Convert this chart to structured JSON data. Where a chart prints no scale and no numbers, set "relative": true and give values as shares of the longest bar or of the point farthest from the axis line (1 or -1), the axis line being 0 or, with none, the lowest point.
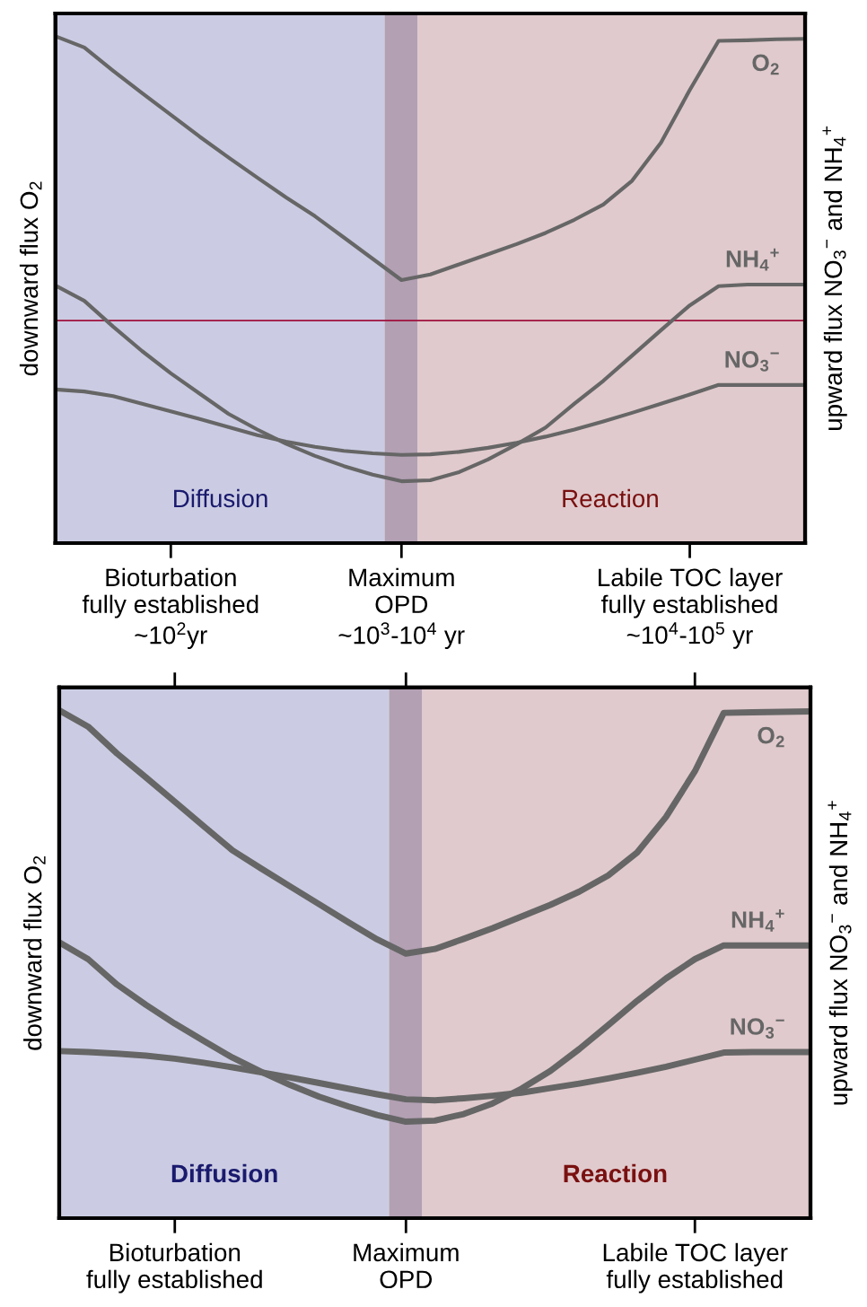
{
  "chart_data": [
    {
      "type": "line",
      "relative": true,
      "ylabel": "downward flux O$_{2}$",
      "y2label": "upward flux NO$_{3}$$^{−}$ and NH$_{4}$$^{+}$",
      "categories": [
        null,
        null,
        null,
        null,
        "Bioturbation\nfully established\n~10$^{2}$yr",
        null,
        null,
        null,
        null,
        null,
        null,
        null,
        "Maximum\nOPD\n~10$^{3}$-10$^{4}$ yr",
        null,
        null,
        null,
        null,
        null,
        null,
        null,
        null,
        null,
        "Labile TOC layer\nfully established\n~10$^{4}$-10$^{5}$ yr",
        null,
        null,
        null,
        null
      ],
      "annotations": [
        "Diffusion",
        "Reaction"
      ],
      "ref_lines": [
        {
          "axis": "y",
          "value": 0.439,
          "color": "#a0103c"
        }
      ],
      "series": [
        {
          "name": "O$_{2}$",
          "color": "#666666",
          "values": [
            1.0,
            0.978,
            0.932,
            0.888,
            0.845,
            0.802,
            0.761,
            0.721,
            0.682,
            0.645,
            0.603,
            0.561,
            0.519,
            0.53,
            0.55,
            0.57,
            0.59,
            0.612,
            0.638,
            0.668,
            0.715,
            0.79,
            0.894,
            0.991,
            0.992,
            0.994,
            0.995
          ]
        },
        {
          "name": "NH$_{4}$$^{+}$",
          "color": "#666666",
          "values": [
            0.508,
            0.478,
            0.427,
            0.379,
            0.335,
            0.295,
            0.255,
            0.224,
            0.196,
            0.172,
            0.152,
            0.135,
            0.122,
            0.124,
            0.14,
            0.165,
            0.195,
            0.228,
            0.275,
            0.32,
            0.37,
            0.42,
            0.469,
            0.507,
            0.51,
            0.51,
            0.51
          ]
        },
        {
          "name": "NO$_{3}$$^{−}$",
          "color": "#666666",
          "values": [
            0.303,
            0.299,
            0.29,
            0.275,
            0.26,
            0.245,
            0.229,
            0.213,
            0.2,
            0.19,
            0.182,
            0.177,
            0.174,
            0.175,
            0.18,
            0.188,
            0.198,
            0.21,
            0.224,
            0.24,
            0.257,
            0.275,
            0.293,
            0.312,
            0.312,
            0.312,
            0.312
          ]
        }
      ]
    },
    {
      "type": "line",
      "relative": true,
      "ylabel": "downward flux O$_{2}$",
      "y2label": "upward flux NO$_{3}$$^{−}$ and NH$_{4}$$^{+}$",
      "categories": [
        null,
        null,
        null,
        null,
        "Bioturbation\nfully established",
        null,
        null,
        null,
        null,
        null,
        null,
        null,
        "Maximum\nOPD",
        null,
        null,
        null,
        null,
        null,
        null,
        null,
        null,
        null,
        "Labile TOC layer\nfully established",
        null,
        null,
        null,
        null
      ],
      "annotations": [
        "Diffusion",
        "Reaction"
      ],
      "series": [
        {
          "name": "O$_{2}$",
          "color": "#666666",
          "values": [
            1.0,
            0.968,
            0.915,
            0.868,
            0.82,
            0.772,
            0.724,
            0.688,
            0.653,
            0.618,
            0.583,
            0.549,
            0.521,
            0.53,
            0.55,
            0.571,
            0.594,
            0.617,
            0.643,
            0.675,
            0.72,
            0.79,
            0.88,
            0.995,
            0.996,
            0.997,
            0.998
          ]
        },
        {
          "name": "NH$_{4}$$^{+}$",
          "color": "#666666",
          "values": [
            0.543,
            0.51,
            0.46,
            0.42,
            0.383,
            0.349,
            0.316,
            0.288,
            0.262,
            0.239,
            0.22,
            0.203,
            0.19,
            0.192,
            0.205,
            0.226,
            0.255,
            0.29,
            0.333,
            0.38,
            0.428,
            0.472,
            0.51,
            0.537,
            0.537,
            0.537,
            0.537
          ]
        },
        {
          "name": "NO$_{3}$$^{−}$",
          "color": "#666666",
          "values": [
            0.329,
            0.327,
            0.324,
            0.32,
            0.314,
            0.306,
            0.297,
            0.287,
            0.277,
            0.266,
            0.255,
            0.244,
            0.234,
            0.232,
            0.236,
            0.241,
            0.247,
            0.256,
            0.265,
            0.275,
            0.286,
            0.298,
            0.312,
            0.326,
            0.327,
            0.327,
            0.327
          ]
        }
      ]
    }
  ]
}
